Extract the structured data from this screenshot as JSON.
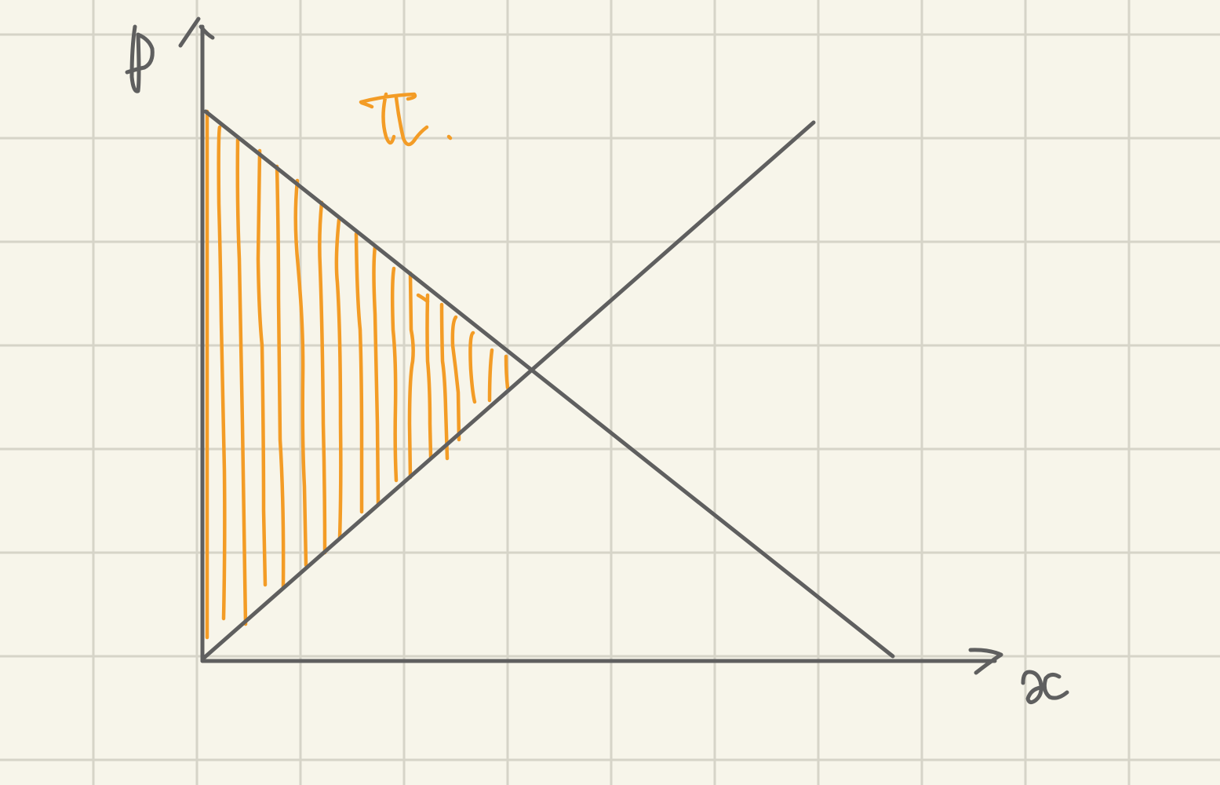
{
  "diagram": {
    "paper_color": "#f7f5ea",
    "grid_color": "#d6d4c8",
    "ink_color": "#5f5f5f",
    "shade_color": "#f39c26",
    "y_axis_label": "p",
    "x_axis_label": "x",
    "region_label": "TL."
  }
}
